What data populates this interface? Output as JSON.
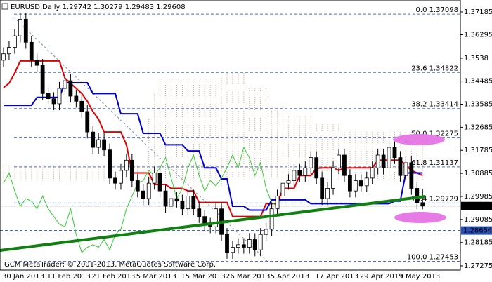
{
  "chart_data": {
    "type": "candlestick",
    "symbol": "EURUSD,Daily",
    "credit": "GCM MetaTrader; © 2001-2013, MetaQuotes Software Corp.",
    "categories": [
      "30 Jan 2013",
      null,
      null,
      null,
      null,
      null,
      null,
      null,
      "11 Feb 2013",
      null,
      null,
      null,
      null,
      null,
      null,
      null,
      "21 Feb 2013",
      null,
      null,
      null,
      null,
      null,
      null,
      null,
      "5 Mar 2013",
      null,
      null,
      null,
      null,
      null,
      null,
      null,
      "15 Mar 2013",
      null,
      null,
      null,
      null,
      null,
      null,
      null,
      "26 Mar 2013",
      null,
      null,
      null,
      null,
      null,
      null,
      null,
      "5 Apr 2013",
      null,
      null,
      null,
      null,
      null,
      null,
      null,
      "17 Apr 2013",
      null,
      null,
      null,
      null,
      null,
      null,
      null,
      "29 Apr 2013",
      null,
      null,
      null,
      null,
      null,
      null,
      "9 May 2013",
      null,
      null,
      null,
      null
    ],
    "open": [
      1.353,
      1.3555,
      1.358,
      1.3625,
      1.369,
      1.36,
      1.353,
      1.351,
      1.34,
      1.338,
      1.336,
      1.342,
      1.345,
      1.339,
      1.337,
      1.333,
      1.325,
      1.319,
      1.322,
      1.318,
      1.307,
      1.305,
      1.31,
      1.314,
      1.306,
      1.302,
      1.299,
      1.305,
      1.309,
      1.302,
      1.296,
      1.299,
      1.298,
      1.295,
      1.3,
      1.295,
      1.292,
      1.289,
      1.288,
      1.295,
      1.285,
      1.278,
      1.28,
      1.281,
      1.28,
      1.283,
      1.279,
      1.285,
      1.287,
      1.295,
      1.3,
      1.305,
      1.306,
      1.31,
      1.308,
      1.311,
      1.315,
      1.307,
      1.299,
      1.303,
      1.311,
      1.316,
      1.308,
      1.302,
      1.306,
      1.304,
      1.307,
      1.311,
      1.316,
      1.311,
      1.319,
      1.315,
      1.308,
      1.313,
      1.303,
      1.29742
    ],
    "high": [
      1.358,
      1.3605,
      1.365,
      1.3715,
      1.3715,
      1.3625,
      1.3555,
      1.3535,
      1.3425,
      1.3405,
      1.3445,
      1.3475,
      1.3475,
      1.3415,
      1.3395,
      1.3355,
      1.3275,
      1.3245,
      1.3245,
      1.3205,
      1.3095,
      1.3125,
      1.3165,
      1.3165,
      1.3085,
      1.3045,
      1.3075,
      1.3115,
      1.3115,
      1.3045,
      1.3015,
      1.3015,
      1.3005,
      1.3025,
      1.3025,
      1.2975,
      1.2945,
      1.2915,
      1.2975,
      1.2975,
      1.2875,
      1.2825,
      1.2835,
      1.2835,
      1.2855,
      1.2855,
      1.2875,
      1.2895,
      1.2975,
      1.3025,
      1.3075,
      1.3085,
      1.3125,
      1.3125,
      1.3135,
      1.3175,
      1.3175,
      1.3095,
      1.3055,
      1.3135,
      1.3185,
      1.3185,
      1.3105,
      1.3085,
      1.3085,
      1.3095,
      1.3135,
      1.3185,
      1.3185,
      1.3215,
      1.3215,
      1.3175,
      1.3155,
      1.3155,
      1.3055,
      1.30279
    ],
    "low": [
      1.3505,
      1.353,
      1.3555,
      1.36,
      1.3575,
      1.3505,
      1.3485,
      1.3375,
      1.3355,
      1.3335,
      1.3335,
      1.3395,
      1.3365,
      1.3345,
      1.3305,
      1.3225,
      1.3165,
      1.3165,
      1.3155,
      1.3045,
      1.3025,
      1.3025,
      1.3075,
      1.3035,
      1.2995,
      1.2965,
      1.2965,
      1.3025,
      1.2995,
      1.2935,
      1.2935,
      1.2955,
      1.2925,
      1.2925,
      1.2925,
      1.2895,
      1.2865,
      1.2855,
      1.2855,
      1.2825,
      1.2755,
      1.2755,
      1.2775,
      1.2775,
      1.2775,
      1.2765,
      1.2765,
      1.2825,
      1.2845,
      1.2925,
      1.2975,
      1.3025,
      1.3035,
      1.3055,
      1.3055,
      1.3085,
      1.3045,
      1.2965,
      1.2965,
      1.3005,
      1.3085,
      1.3055,
      1.2995,
      1.2995,
      1.3015,
      1.3015,
      1.3045,
      1.3085,
      1.3085,
      1.3085,
      1.3125,
      1.3055,
      1.3055,
      1.3005,
      1.2949,
      1.29483
    ],
    "close": [
      1.3555,
      1.358,
      1.3625,
      1.369,
      1.36,
      1.353,
      1.351,
      1.34,
      1.338,
      1.336,
      1.342,
      1.345,
      1.339,
      1.337,
      1.333,
      1.325,
      1.319,
      1.322,
      1.318,
      1.307,
      1.305,
      1.31,
      1.314,
      1.306,
      1.302,
      1.299,
      1.305,
      1.309,
      1.302,
      1.296,
      1.299,
      1.298,
      1.295,
      1.3,
      1.295,
      1.292,
      1.289,
      1.288,
      1.295,
      1.285,
      1.278,
      1.28,
      1.281,
      1.28,
      1.283,
      1.279,
      1.285,
      1.287,
      1.295,
      1.3,
      1.305,
      1.306,
      1.31,
      1.308,
      1.311,
      1.315,
      1.307,
      1.299,
      1.303,
      1.311,
      1.316,
      1.308,
      1.302,
      1.306,
      1.304,
      1.307,
      1.311,
      1.316,
      1.311,
      1.319,
      1.315,
      1.308,
      1.313,
      1.303,
      1.2974,
      1.29608
    ],
    "series": [
      {
        "color": "#e00000",
        "width": 2,
        "values": [
          1.3423,
          1.344,
          1.348,
          1.3527,
          1.3527,
          1.3527,
          1.3527,
          1.3527,
          1.3527,
          1.3527,
          1.3527,
          1.346,
          1.344,
          1.342,
          1.34,
          1.337,
          1.333,
          1.33,
          1.325,
          1.325,
          1.325,
          1.325,
          1.32,
          1.309,
          1.309,
          1.309,
          1.309,
          1.3045,
          1.3045,
          1.3045,
          1.303,
          1.303,
          1.303,
          1.302,
          1.302,
          1.2975,
          1.2975,
          1.2975,
          1.2975,
          1.2975,
          1.2975,
          1.292,
          1.292,
          1.292,
          1.292,
          1.292,
          1.292,
          1.297,
          1.297,
          1.297,
          1.303,
          1.303,
          1.303,
          1.308,
          1.308,
          1.308,
          1.3108,
          1.311,
          1.311,
          1.311,
          1.31,
          1.311,
          1.311,
          1.311,
          1.311,
          1.311,
          1.311,
          1.314,
          1.314,
          1.314,
          1.314,
          1.314,
          1.312,
          1.31,
          1.309,
          1.308
        ]
      },
      {
        "color": "#0000d0",
        "width": 2,
        "values": [
          1.3354,
          1.3354,
          1.3354,
          1.3354,
          1.3354,
          1.3354,
          1.3385,
          1.3385,
          1.3385,
          1.3385,
          1.3385,
          1.3442,
          1.3442,
          1.3442,
          1.3442,
          1.3442,
          1.34,
          1.34,
          1.34,
          1.34,
          1.34,
          1.3321,
          1.3321,
          1.3321,
          1.3321,
          1.3245,
          1.3245,
          1.3245,
          1.3245,
          1.32,
          1.32,
          1.32,
          1.32,
          1.3176,
          1.3176,
          1.3176,
          1.311,
          1.311,
          1.311,
          1.3067,
          1.3067,
          1.296,
          1.296,
          1.296,
          1.2945,
          1.2945,
          1.2945,
          1.2945,
          1.2985,
          1.2985,
          1.2985,
          1.2985,
          1.2985,
          1.2985,
          1.2985,
          1.297,
          1.297,
          1.297,
          1.297,
          1.297,
          1.297,
          1.297,
          1.297,
          1.297,
          1.297,
          1.297,
          1.297,
          1.297,
          1.297,
          1.297,
          1.298,
          1.298,
          1.309,
          1.309,
          1.309,
          1.309
        ]
      },
      {
        "color": "#33cc33",
        "width": 1,
        "values": [
          1.305,
          1.309,
          1.302,
          1.296,
          1.299,
          1.298,
          1.295,
          1.3,
          1.295,
          1.292,
          1.289,
          1.288,
          1.295,
          1.285,
          1.278,
          1.28,
          1.281,
          1.28,
          1.283,
          1.279,
          1.285,
          1.287,
          1.295,
          1.3,
          1.305,
          1.306,
          1.31,
          1.308,
          1.311,
          1.315,
          1.307,
          1.299,
          1.303,
          1.311,
          1.316,
          1.308,
          1.302,
          1.306,
          1.304,
          1.307,
          1.311,
          1.316,
          1.311,
          1.319,
          1.315,
          1.308,
          1.313,
          1.303,
          1.2974,
          1.29608,
          null,
          null,
          null,
          null,
          null,
          null,
          null,
          null,
          null,
          null,
          null,
          null,
          null,
          null,
          null,
          null,
          null,
          null,
          null,
          null,
          null,
          null,
          null,
          null,
          null,
          null
        ]
      }
    ],
    "cloud": {
      "color": "#d9a37a",
      "span_a": [
        1.312,
        1.312,
        1.312,
        1.312,
        1.312,
        1.312,
        1.312,
        1.312,
        1.312,
        1.312,
        1.312,
        1.312,
        1.312,
        1.312,
        1.312,
        1.312,
        1.312,
        1.312,
        1.312,
        1.312,
        1.312,
        1.312,
        1.312,
        1.312,
        1.312,
        1.312,
        1.33,
        1.34,
        1.345,
        1.345,
        1.345,
        1.345,
        1.345,
        1.345,
        1.345,
        1.345,
        1.345,
        1.345,
        1.345,
        1.347,
        1.348,
        1.348,
        1.348,
        1.348,
        1.342,
        1.342,
        1.342,
        1.342,
        1.335,
        1.335,
        1.335,
        1.331,
        1.331,
        1.331,
        1.331,
        1.331,
        1.328,
        1.328,
        1.328,
        1.328,
        1.328,
        1.325,
        1.325,
        1.325,
        1.325,
        1.325,
        1.325,
        1.325,
        1.325,
        1.325,
        1.325,
        1.325,
        1.325,
        1.325,
        1.325,
        1.323
      ],
      "span_b": [
        1.306,
        1.306,
        1.306,
        1.306,
        1.306,
        1.306,
        1.306,
        1.306,
        1.306,
        1.306,
        1.306,
        1.306,
        1.306,
        1.306,
        1.306,
        1.306,
        1.306,
        1.306,
        1.306,
        1.306,
        1.306,
        1.306,
        1.306,
        1.306,
        1.306,
        1.306,
        1.304,
        1.304,
        1.304,
        1.304,
        1.304,
        1.304,
        1.304,
        1.304,
        1.304,
        1.304,
        1.304,
        1.304,
        1.304,
        1.304,
        1.304,
        1.307,
        1.307,
        1.307,
        1.307,
        1.307,
        1.307,
        1.307,
        1.307,
        1.307,
        1.307,
        1.306,
        1.306,
        1.306,
        1.306,
        1.306,
        1.306,
        1.306,
        1.306,
        1.306,
        1.306,
        1.306,
        1.306,
        1.306,
        1.306,
        1.306,
        1.306,
        1.306,
        1.306,
        1.306,
        1.306,
        1.306,
        1.306,
        1.306,
        1.306,
        1.306
      ]
    },
    "fib_levels": [
      {
        "ratio": "0.0",
        "price": 1.37098
      },
      {
        "ratio": "23.6",
        "price": 1.34822
      },
      {
        "ratio": "38.2",
        "price": 1.33414
      },
      {
        "ratio": "50.0",
        "price": 1.32275
      },
      {
        "ratio": "61.8",
        "price": 1.31137
      },
      {
        "ratio": "76.4",
        "price": 1.29729
      },
      {
        "ratio": "100.0",
        "price": 1.27453
      }
    ],
    "fib_color": "#4a6fd0",
    "marker_price": 1.28654,
    "ylim": [
      1.2711,
      1.3765
    ],
    "yticks": [
      1.37185,
      1.36295,
      1.3538,
      1.34485,
      1.33585,
      1.32685,
      1.31785,
      1.30885,
      1.29985,
      1.29085,
      1.28185,
      1.27275
    ]
  }
}
